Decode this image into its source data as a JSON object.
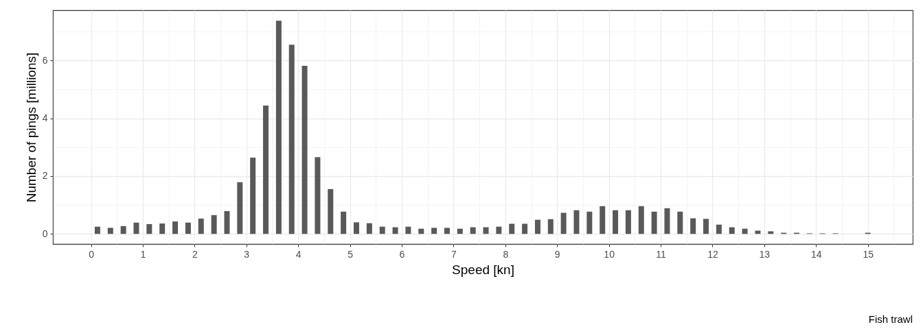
{
  "chart_data": {
    "type": "bar",
    "xlabel": "Speed [kn]",
    "ylabel": "Number of pings [millions]",
    "annotations": [
      "Fish trawl"
    ],
    "x": [
      0.125,
      0.375,
      0.625,
      0.875,
      1.125,
      1.375,
      1.625,
      1.875,
      2.125,
      2.375,
      2.625,
      2.875,
      3.125,
      3.375,
      3.625,
      3.875,
      4.125,
      4.375,
      4.625,
      4.875,
      5.125,
      5.375,
      5.625,
      5.875,
      6.125,
      6.375,
      6.625,
      6.875,
      7.125,
      7.375,
      7.625,
      7.875,
      8.125,
      8.375,
      8.625,
      8.875,
      9.125,
      9.375,
      9.625,
      9.875,
      10.125,
      10.375,
      10.625,
      10.875,
      11.125,
      11.375,
      11.625,
      11.875,
      12.125,
      12.375,
      12.625,
      12.875,
      13.125,
      13.375,
      13.625,
      13.875,
      14.125,
      14.375,
      15
    ],
    "values": [
      0.25,
      0.21,
      0.27,
      0.39,
      0.34,
      0.36,
      0.43,
      0.39,
      0.53,
      0.65,
      0.79,
      1.79,
      2.64,
      4.44,
      7.38,
      6.55,
      5.82,
      2.66,
      1.55,
      0.77,
      0.4,
      0.37,
      0.25,
      0.23,
      0.25,
      0.18,
      0.21,
      0.21,
      0.18,
      0.23,
      0.23,
      0.25,
      0.35,
      0.35,
      0.49,
      0.51,
      0.73,
      0.82,
      0.77,
      0.96,
      0.82,
      0.82,
      0.96,
      0.77,
      0.89,
      0.77,
      0.54,
      0.52,
      0.32,
      0.23,
      0.18,
      0.11,
      0.09,
      0.04,
      0.04,
      0.02,
      0.02,
      0.02,
      0.04
    ],
    "color": "#595959",
    "xlim": [
      -0.67,
      15.8
    ],
    "xticks": [
      0,
      {
        "value": 0.5,
        "label": null
      },
      1,
      {
        "value": 1.5,
        "label": null
      },
      2,
      {
        "value": 2.5,
        "label": null
      },
      3,
      {
        "value": 3.5,
        "label": null
      },
      4,
      {
        "value": 4.5,
        "label": null
      },
      5,
      {
        "value": 5.5,
        "label": null
      },
      6,
      {
        "value": 6.5,
        "label": null
      },
      7,
      {
        "value": 7.5,
        "label": null
      },
      8,
      {
        "value": 8.5,
        "label": null
      },
      9,
      {
        "value": 9.5,
        "label": null
      },
      10,
      {
        "value": 10.5,
        "label": null
      },
      11,
      {
        "value": 11.5,
        "label": null
      },
      12,
      {
        "value": 12.5,
        "label": null
      },
      13,
      {
        "value": 13.5,
        "label": null
      },
      14,
      {
        "value": 14.5,
        "label": null
      },
      15,
      {
        "value": 15.5,
        "label": null
      }
    ],
    "ylim": [
      -0.35,
      7.74
    ],
    "yticks": [
      0,
      {
        "value": 1,
        "label": null
      },
      2,
      {
        "value": 3,
        "label": null
      },
      4,
      {
        "value": 5,
        "label": null
      },
      6,
      {
        "value": 7,
        "label": null
      }
    ],
    "grid": true
  }
}
